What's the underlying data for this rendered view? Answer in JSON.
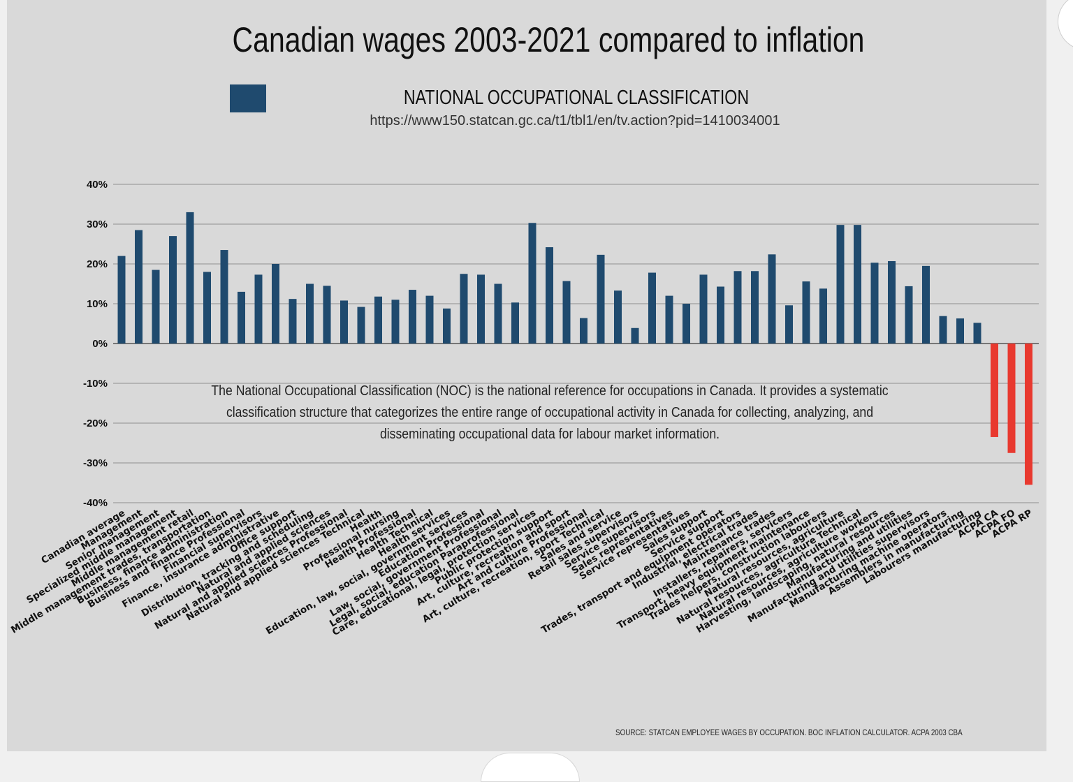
{
  "title": "Canadian wages 2003-2021 compared to inflation",
  "legend": {
    "label": "NATIONAL OCCUPATIONAL CLASSIFICATION",
    "color": "#1f4a6e"
  },
  "url": "https://www150.statcan.gc.ca/t1/tbl1/en/tv.action?pid=1410034001",
  "note": "The National Occupational Classification (NOC) is the national reference for occupations in Canada. It provides a systematic classification structure that categorizes the entire range of occupational activity in Canada for collecting, analyzing, and disseminating occupational data for labour market information.",
  "source": "SOURCE: STATCAN EMPLOYEE WAGES BY OCCUPATION.  BOC INFLATION CALCULATOR.  ACPA 2003 CBA",
  "chart_data": {
    "type": "bar",
    "ylim": [
      -40,
      40
    ],
    "yticks": [
      40,
      30,
      20,
      10,
      0,
      -10,
      -20,
      -30,
      -40
    ],
    "yunit": "%",
    "grid": true,
    "positive_color": "#1f4a6e",
    "negative_color": "#e8392f",
    "categories": [
      "Canadian average",
      "Management",
      "Senior management",
      "Specialized middle management",
      "Middle management retail",
      "Middle management trades, transportation",
      "Business, finance administration",
      "Business and finance Professional",
      "Financial supervisors",
      "Finance, insurance administrative",
      "Office support",
      "Distribution, tracking and scheduling",
      "Natural and applied sciences",
      "Natural and applied sciences Professional",
      "Natural and applied sciences Technical",
      "Health",
      "Professional nursing",
      "Health Professional",
      "Health Technical",
      "Health services",
      "Education, law, social, government services",
      "Education Professional",
      "Law, social, government Professional",
      "Legal, social, education Paraprofessional",
      "Care, educational, legal, protection services",
      "Public protection support",
      "Art, culture, recreation and sport",
      "Art and culture Professional",
      "Art, culture, recreation, sport Technical",
      "Sales and service",
      "Retail sales supervisors",
      "Service supervisors",
      "Sales representatives",
      "Service representatives",
      "Sales support",
      "Service support",
      "Trades, transport and equipment operators",
      "Industrial, electrical trades",
      "Maintenance trades",
      "Installers, repairers, servicers",
      "Transport, heavy equipment maintenance",
      "Trades helpers, construction labourers",
      "Natural resources, agriculture",
      "Natural resources, agriculture Technical",
      "Natural resources, agriculture workers",
      "Harvesting, landscaping, natural resources",
      "Manufacturing and utilities",
      "Manufacturing and utilities supervisors",
      "Manufacturing machine operators",
      "Assemblers in manufacturing",
      "Labourers manufacturing",
      "ACPA CA",
      "ACPA FO",
      "ACPA RP"
    ],
    "values": [
      22,
      28.5,
      18.5,
      27,
      33,
      18,
      23.5,
      13,
      17.3,
      20,
      11.2,
      15,
      14.5,
      10.8,
      9.2,
      11.8,
      11,
      13.5,
      12,
      8.8,
      17.5,
      17.3,
      15,
      10.3,
      30.3,
      24.2,
      15.7,
      6.4,
      22.3,
      13.3,
      3.9,
      17.8,
      12,
      10,
      17.3,
      14.3,
      18.2,
      18.2,
      22.4,
      9.6,
      15.6,
      13.8,
      29.8,
      29.8,
      20.3,
      20.7,
      14.4,
      19.5,
      6.9,
      6.3,
      5.2,
      -23.5,
      -27.5,
      -35.5
    ]
  }
}
